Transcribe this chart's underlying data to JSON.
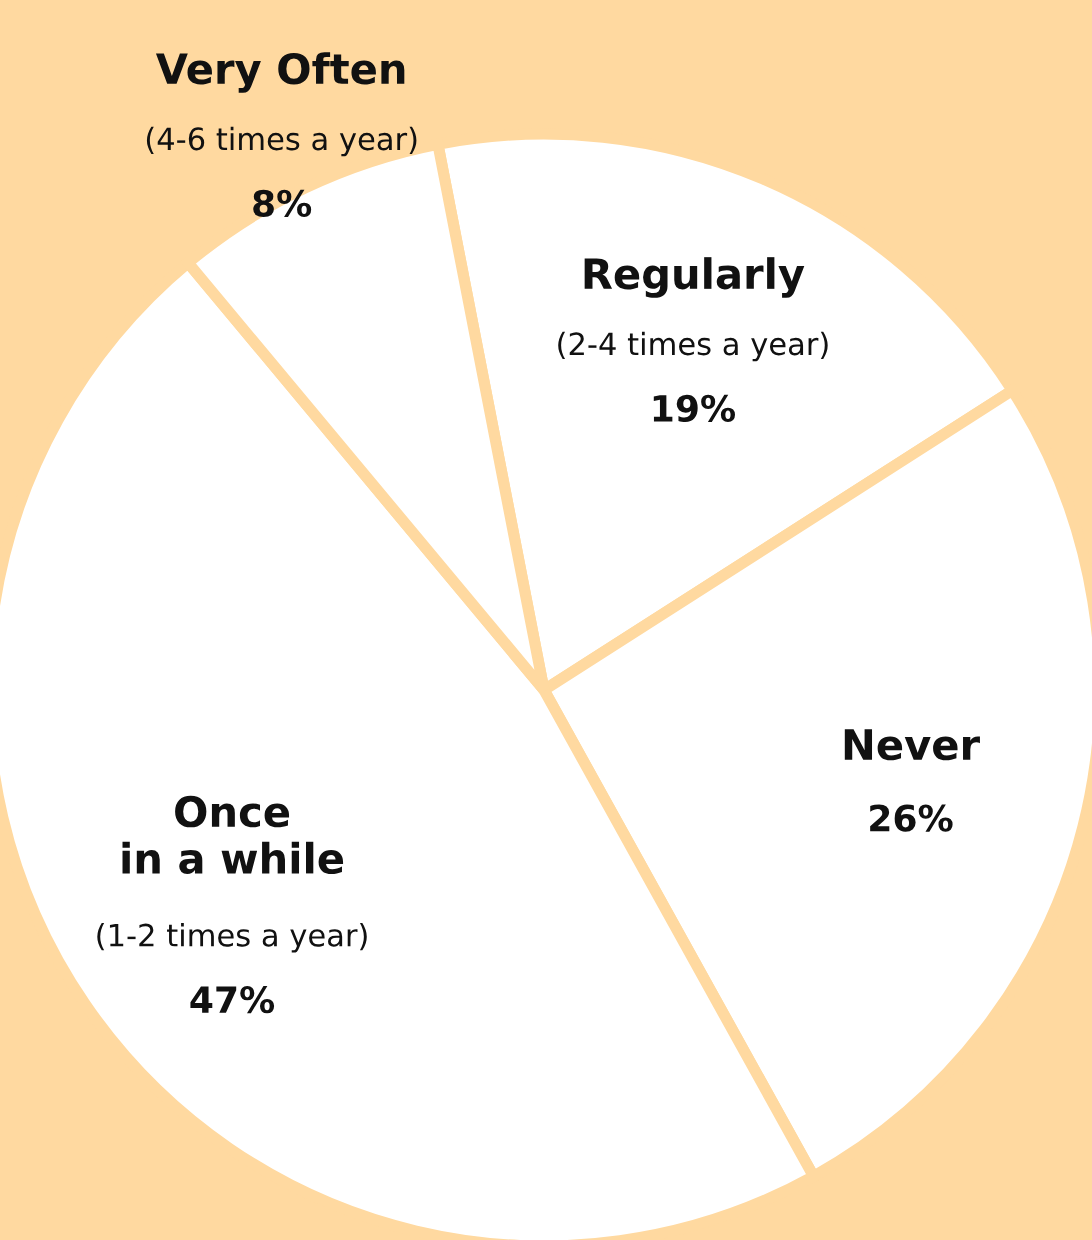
{
  "chart_data": {
    "type": "pie",
    "categories": [
      "Regularly",
      "Never",
      "Once\nin a while",
      "Very Often"
    ],
    "values": [
      19,
      26,
      47,
      8
    ],
    "value_labels": [
      "19%",
      "26%",
      "47%",
      "8%"
    ],
    "annotations": [
      "(2-4 times a year)",
      null,
      "(1-2 times a year)",
      "(4-6 times a year)"
    ],
    "colors": [
      "#ffffff",
      "#ffffff",
      "#ffffff",
      "#ffffff"
    ]
  }
}
